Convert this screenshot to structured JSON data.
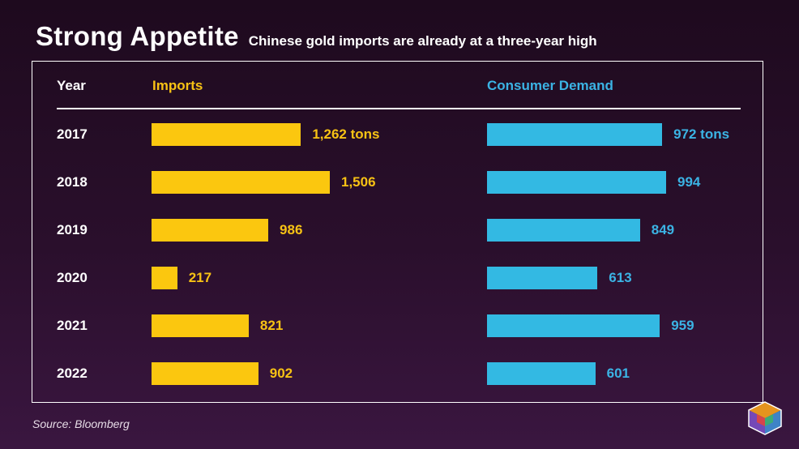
{
  "header": {
    "title": "Strong Appetite",
    "subtitle": "Chinese gold imports are already at a three-year high"
  },
  "footer": {
    "source": "Source: Bloomberg"
  },
  "logo": {
    "icon": "cube-icon",
    "colors": [
      "#e8443a",
      "#f7a21b",
      "#3f8fd6",
      "#7c4fc4",
      "#3bb36b"
    ]
  },
  "chart_data": {
    "type": "table",
    "columns": [
      "Year",
      "Imports",
      "Consumer Demand"
    ],
    "unit": "tons",
    "rows": [
      {
        "year": "2017",
        "imports": 1262,
        "imports_label": "1,262 tons",
        "demand": 972,
        "demand_label": "972 tons"
      },
      {
        "year": "2018",
        "imports": 1506,
        "imports_label": "1,506",
        "demand": 994,
        "demand_label": "994"
      },
      {
        "year": "2019",
        "imports": 986,
        "imports_label": "986",
        "demand": 849,
        "demand_label": "849"
      },
      {
        "year": "2020",
        "imports": 217,
        "imports_label": "217",
        "demand": 613,
        "demand_label": "613"
      },
      {
        "year": "2021",
        "imports": 821,
        "imports_label": "821",
        "demand": 959,
        "demand_label": "959"
      },
      {
        "year": "2022",
        "imports": 902,
        "imports_label": "902",
        "demand": 601,
        "demand_label": "601"
      }
    ],
    "series_colors": {
      "imports": "#fbc70f",
      "demand": "#33b9e3"
    }
  }
}
